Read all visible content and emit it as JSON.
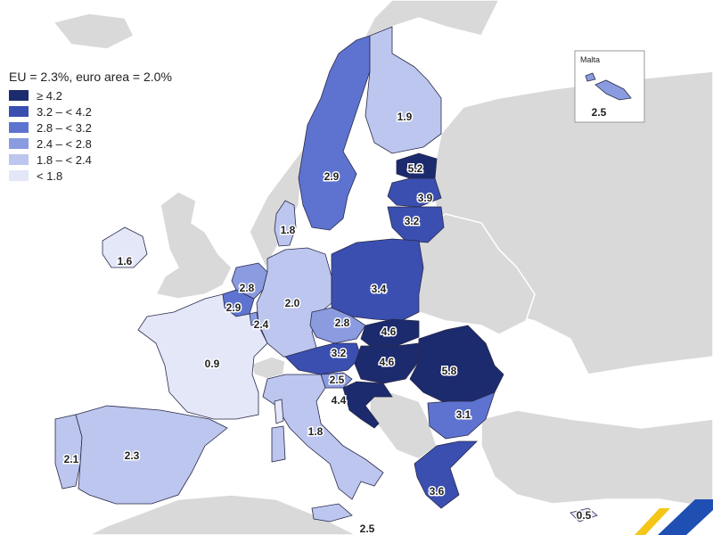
{
  "legend": {
    "title": "EU = 2.3%, euro area = 2.0%",
    "classes": [
      {
        "label": "≥ 4.2",
        "color": "#1c2a6e"
      },
      {
        "label": "3.2 – < 4.2",
        "color": "#3a4fb0"
      },
      {
        "label": "2.8 – < 3.2",
        "color": "#5d73cf"
      },
      {
        "label": "2.4 – < 2.8",
        "color": "#8a9be0"
      },
      {
        "label": "1.8 – < 2.4",
        "color": "#bcc6ee"
      },
      {
        "label": "< 1.8",
        "color": "#e3e7f8"
      }
    ]
  },
  "countries": [
    {
      "name": "Portugal",
      "value": "2.1",
      "class": 4
    },
    {
      "name": "Spain",
      "value": "2.3",
      "class": 4
    },
    {
      "name": "France",
      "value": "0.9",
      "class": 5
    },
    {
      "name": "Ireland",
      "value": "1.6",
      "class": 5
    },
    {
      "name": "Belgium",
      "value": "2.9",
      "class": 2
    },
    {
      "name": "Netherlands",
      "value": "2.8",
      "class": 3
    },
    {
      "name": "Luxembourg",
      "value": "2.4",
      "class": 3
    },
    {
      "name": "Germany",
      "value": "2.0",
      "class": 4
    },
    {
      "name": "Denmark",
      "value": "1.8",
      "class": 4
    },
    {
      "name": "Sweden",
      "value": "2.9",
      "class": 2
    },
    {
      "name": "Finland",
      "value": "1.9",
      "class": 4
    },
    {
      "name": "Estonia",
      "value": "5.2",
      "class": 0
    },
    {
      "name": "Latvia",
      "value": "3.9",
      "class": 1
    },
    {
      "name": "Lithuania",
      "value": "3.2",
      "class": 1
    },
    {
      "name": "Poland",
      "value": "3.4",
      "class": 1
    },
    {
      "name": "Czechia",
      "value": "2.8",
      "class": 3
    },
    {
      "name": "Slovakia",
      "value": "4.6",
      "class": 0
    },
    {
      "name": "Austria",
      "value": "3.2",
      "class": 1
    },
    {
      "name": "Hungary",
      "value": "4.6",
      "class": 0
    },
    {
      "name": "Romania",
      "value": "5.8",
      "class": 0
    },
    {
      "name": "Slovenia",
      "value": "2.5",
      "class": 3
    },
    {
      "name": "Croatia",
      "value": "4.4",
      "class": 0
    },
    {
      "name": "Italy",
      "value": "1.8",
      "class": 4
    },
    {
      "name": "Bulgaria",
      "value": "3.1",
      "class": 2
    },
    {
      "name": "Greece",
      "value": "3.6",
      "class": 1
    },
    {
      "name": "Malta",
      "value": "2.5",
      "class": 3
    },
    {
      "name": "Cyprus",
      "value": "0.5",
      "class": 5
    }
  ],
  "extra_labels": [
    {
      "name": "sicily-label",
      "value": "2.5"
    }
  ],
  "malta_inset": {
    "name": "Malta",
    "value": "2.5"
  },
  "colors": {
    "sea": "#ffffff",
    "non_eu": "#d9d9d9",
    "border": "#ffffff",
    "eu_border": "#2a2a4a"
  }
}
